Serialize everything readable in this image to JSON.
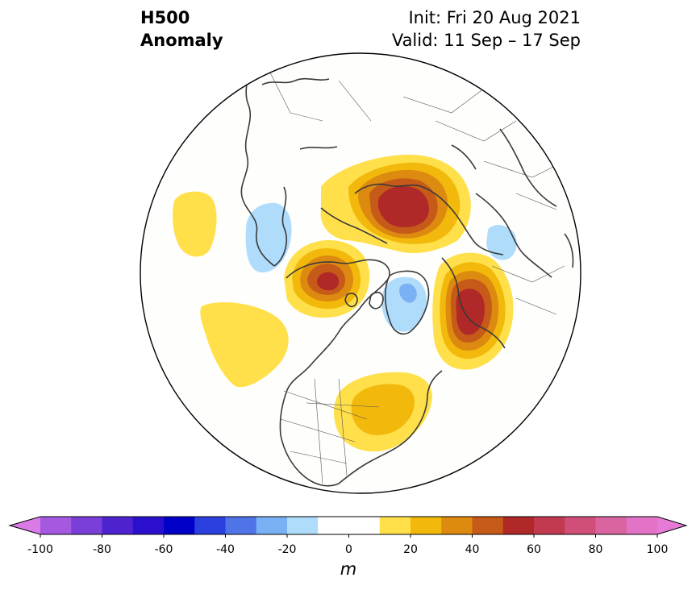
{
  "header": {
    "title_line1": "H500",
    "title_line2": "Anomaly",
    "init": "Init: Fri 20 Aug 2021",
    "valid": "Valid: 11 Sep – 17 Sep"
  },
  "colorbar": {
    "units": "m",
    "tick_labels": [
      "-100",
      "-80",
      "-60",
      "-40",
      "-20",
      "0",
      "20",
      "40",
      "60",
      "80",
      "100"
    ],
    "bin_colors": [
      "#a558e0",
      "#7a3fd8",
      "#4f22d0",
      "#2a0fce",
      "#0000c8",
      "#2a3fde",
      "#4f74e8",
      "#7ab0f4",
      "#b0dcfb",
      "#ffffff",
      "#ffffff",
      "#ffe04a",
      "#f2b90c",
      "#dd8a10",
      "#c65a18",
      "#b02828",
      "#c23a50",
      "#cf4f78",
      "#d964a0",
      "#e273c6"
    ],
    "low_extend_color": "#d97ae6",
    "high_extend_color": "#e57ad7"
  },
  "map": {
    "projection": "north-polar-stereographic",
    "anomaly_features": [
      {
        "name": "siberia-ridge",
        "peak_m": 55,
        "sign": "positive"
      },
      {
        "name": "alaska-ridge",
        "peak_m": 50,
        "sign": "positive"
      },
      {
        "name": "eastern-europe-ridge",
        "peak_m": 55,
        "sign": "positive"
      },
      {
        "name": "eastern-north-america-ridge",
        "peak_m": 30,
        "sign": "positive"
      },
      {
        "name": "north-pacific-ridge",
        "peak_m": 15,
        "sign": "positive"
      },
      {
        "name": "subtropical-pacific-ridge",
        "peak_m": 15,
        "sign": "positive"
      },
      {
        "name": "japan-trough",
        "peak_m": -20,
        "sign": "negative"
      },
      {
        "name": "greenland-trough",
        "peak_m": -25,
        "sign": "negative"
      },
      {
        "name": "caspian-trough",
        "peak_m": -20,
        "sign": "negative"
      }
    ]
  }
}
